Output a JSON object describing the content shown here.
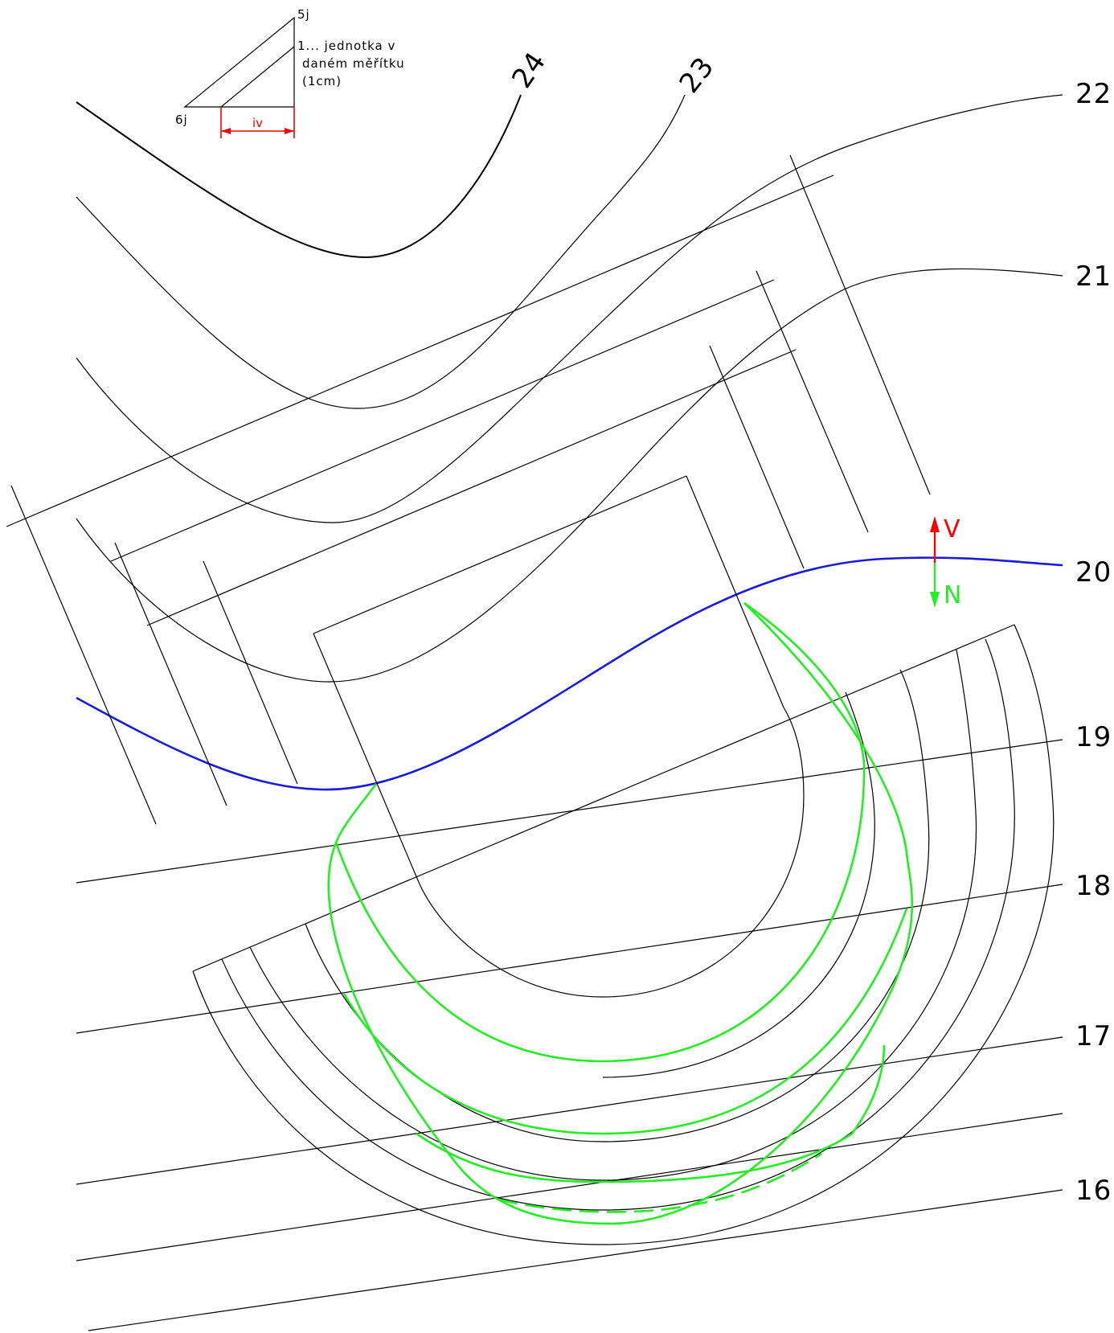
{
  "scale_legend": {
    "label_5j": "5j",
    "label_6j": "6j",
    "label_iv": "iv",
    "note_line1": "1... jednotka v",
    "note_line2": "daném měřítku",
    "note_line3": "(1cm)"
  },
  "contour_labels": {
    "c24": "24",
    "c23": "23",
    "c22": "22",
    "c21": "21",
    "c20": "20",
    "c19": "19",
    "c18": "18",
    "c17": "17",
    "c16": "16"
  },
  "direction": {
    "up_label": "V",
    "down_label": "N",
    "up_color": "#ff0000",
    "down_color": "#22ee22"
  },
  "colors": {
    "contour": "#000000",
    "reference_contour": "#1a1adc",
    "intersection_lines": "#22ee22",
    "measure": "#ff0000"
  }
}
